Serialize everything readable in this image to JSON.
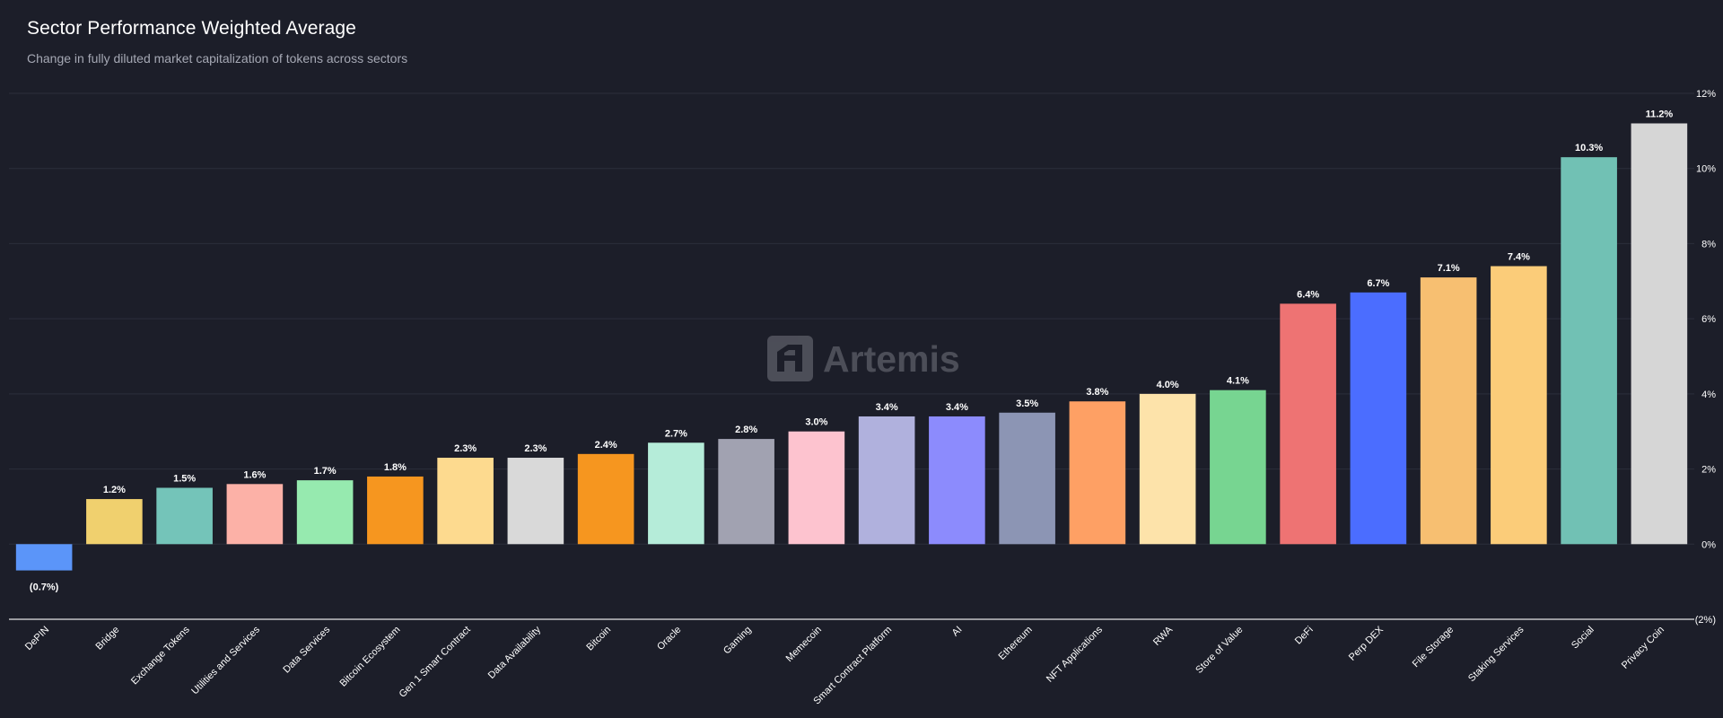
{
  "header": {
    "title": "Sector Performance Weighted Average",
    "subtitle": "Change in fully diluted market capitalization of tokens across sectors"
  },
  "watermark": {
    "text": "Artemis",
    "icon": "artemis-logo-icon"
  },
  "colors": {
    "background": "#1c1e29",
    "grid": "#2b2e3b",
    "axis": "#e6e6e6",
    "text": "#ffffff",
    "subtext": "#a5a8b4"
  },
  "chart_data": {
    "type": "bar",
    "categories": [
      "DePIN",
      "Bridge",
      "Exchange Tokens",
      "Utilities and Services",
      "Data Services",
      "Bitcoin Ecosystem",
      "Gen 1 Smart Contract",
      "Data Availability",
      "Bitcoin",
      "Oracle",
      "Gaming",
      "Memecoin",
      "Smart Contract Platform",
      "AI",
      "Ethereum",
      "NFT Applications",
      "RWA",
      "Store of Value",
      "DeFi",
      "Perp DEX",
      "File Storage",
      "Staking Services",
      "Social",
      "Privacy Coin"
    ],
    "values": [
      -0.7,
      1.2,
      1.5,
      1.6,
      1.7,
      1.8,
      2.3,
      2.3,
      2.4,
      2.7,
      2.8,
      3.0,
      3.4,
      3.4,
      3.5,
      3.8,
      4.0,
      4.1,
      6.4,
      6.7,
      7.1,
      7.4,
      10.3,
      11.2
    ],
    "value_labels": [
      "(0.7%)",
      "1.2%",
      "1.5%",
      "1.6%",
      "1.7%",
      "1.8%",
      "2.3%",
      "2.3%",
      "2.4%",
      "2.7%",
      "2.8%",
      "3.0%",
      "3.4%",
      "3.4%",
      "3.5%",
      "3.8%",
      "4.0%",
      "4.1%",
      "6.4%",
      "6.7%",
      "7.1%",
      "7.4%",
      "10.3%",
      "11.2%"
    ],
    "bar_colors": [
      "#5b95f9",
      "#f0d06e",
      "#74c4b9",
      "#fcb1a7",
      "#96eaaf",
      "#f6961f",
      "#fdda8f",
      "#d9d9d9",
      "#f6961f",
      "#b5ecd9",
      "#a1a2b1",
      "#fdc3cf",
      "#b0b1dd",
      "#8c8bfd",
      "#8c95b4",
      "#fea064",
      "#fde3aa",
      "#77d591",
      "#ee7373",
      "#4b6dff",
      "#f7bf71",
      "#fbcc79",
      "#71c1b4",
      "#d6d6d6"
    ],
    "ylim": [
      -2,
      12
    ],
    "yticks": [
      12,
      10,
      8,
      6,
      4,
      2,
      0,
      -2
    ],
    "ytick_labels": [
      "12%",
      "10%",
      "8%",
      "6%",
      "4%",
      "2%",
      "0%",
      "(2%)"
    ],
    "y_axis_position": "right",
    "grid": true,
    "title": "Sector Performance Weighted Average",
    "xlabel": "",
    "ylabel": ""
  }
}
